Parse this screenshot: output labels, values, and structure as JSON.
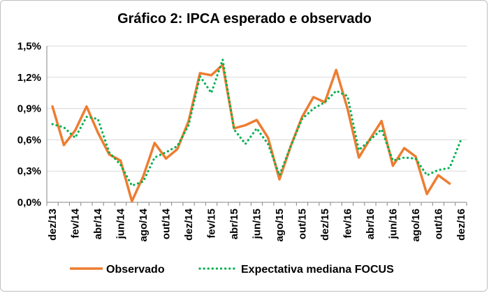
{
  "chart_data": {
    "type": "line",
    "title": "Gráfico 2: IPCA esperado e observado",
    "xlabel": "",
    "ylabel": "",
    "ylim": [
      0,
      1.5
    ],
    "yticks": [
      "0,0%",
      "0,3%",
      "0,6%",
      "0,9%",
      "1,2%",
      "1,5%"
    ],
    "ytick_values": [
      0,
      0.3,
      0.6,
      0.9,
      1.2,
      1.5
    ],
    "grid": "horizontal",
    "legend_position": "bottom",
    "x": [
      "dez/13",
      "jan/14",
      "fev/14",
      "mar/14",
      "abr/14",
      "mai/14",
      "jun/14",
      "jul/14",
      "ago/14",
      "set/14",
      "out/14",
      "nov/14",
      "dez/14",
      "jan/15",
      "fev/15",
      "mar/15",
      "abr/15",
      "mai/15",
      "jun/15",
      "jul/15",
      "ago/15",
      "set/15",
      "out/15",
      "nov/15",
      "dez/15",
      "jan/16",
      "fev/16",
      "mar/16",
      "abr/16",
      "mai/16",
      "jun/16",
      "jul/16",
      "ago/16",
      "set/16",
      "out/16",
      "nov/16",
      "dez/16"
    ],
    "xtick_labels": [
      "dez/13",
      "fev/14",
      "abr/14",
      "jun/14",
      "ago/14",
      "out/14",
      "dez/14",
      "fev/15",
      "abr/15",
      "jun/15",
      "ago/15",
      "out/15",
      "dez/15",
      "fev/16",
      "abr/16",
      "jun/16",
      "ago/16",
      "out/16",
      "dez/16"
    ],
    "series": [
      {
        "name": "Observado",
        "color": "#ed7d31",
        "style": "solid",
        "values": [
          0.92,
          0.55,
          0.69,
          0.92,
          0.67,
          0.46,
          0.4,
          0.01,
          0.25,
          0.57,
          0.42,
          0.51,
          0.78,
          1.24,
          1.22,
          1.32,
          0.71,
          0.74,
          0.79,
          0.62,
          0.22,
          0.54,
          0.82,
          1.01,
          0.96,
          1.27,
          0.9,
          0.43,
          0.61,
          0.78,
          0.35,
          0.52,
          0.44,
          0.08,
          0.26,
          0.18,
          null
        ]
      },
      {
        "name": "Expectativa mediana FOCUS",
        "color": "#00b050",
        "style": "dotted",
        "values": [
          0.75,
          0.72,
          0.62,
          0.82,
          0.8,
          0.48,
          0.36,
          0.16,
          0.2,
          0.43,
          0.48,
          0.54,
          0.74,
          1.21,
          1.05,
          1.37,
          0.7,
          0.56,
          0.71,
          0.56,
          0.26,
          0.54,
          0.8,
          0.9,
          0.96,
          1.07,
          1.02,
          0.5,
          0.6,
          0.7,
          0.4,
          0.43,
          0.42,
          0.26,
          0.31,
          0.33,
          0.6
        ]
      }
    ]
  }
}
